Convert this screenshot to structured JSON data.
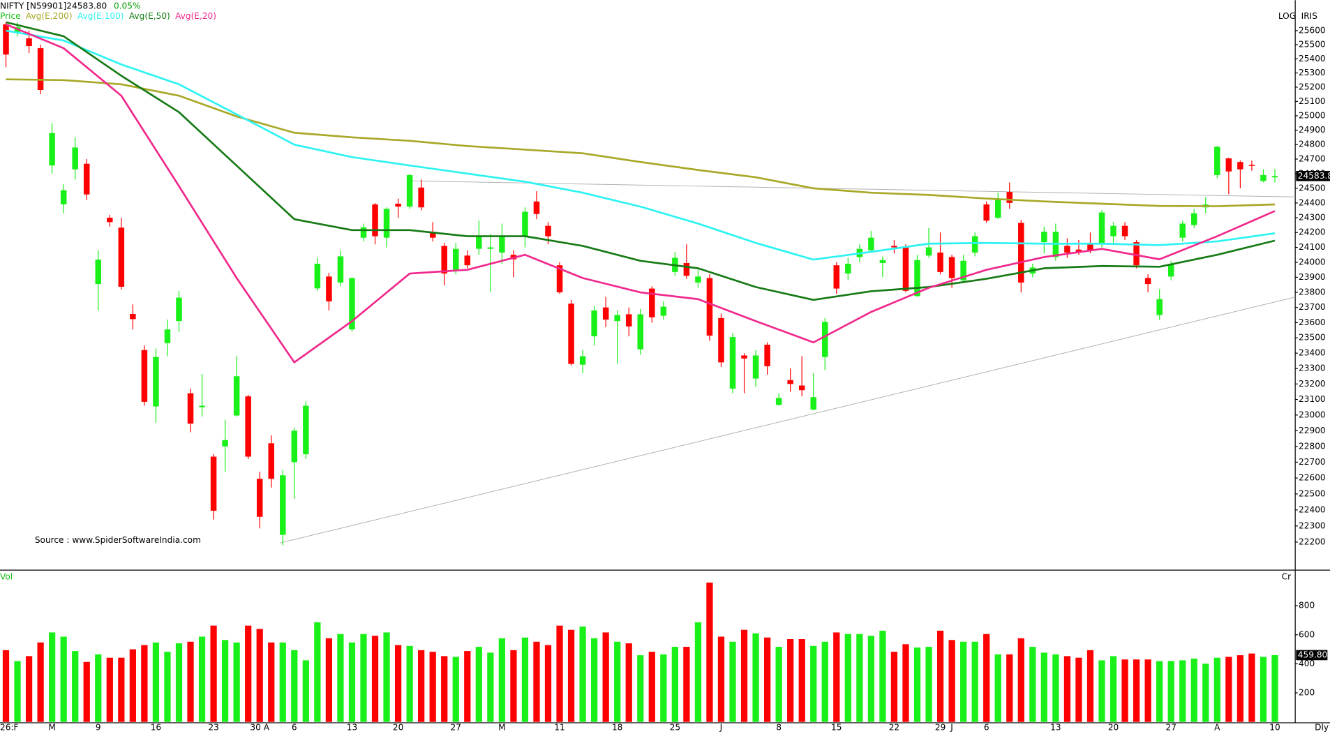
{
  "chart_data": {
    "type": "candlestick",
    "title": "NIFTY [N59901]24583.80",
    "subtitle": "0.05%",
    "scale_label": "LOG",
    "source_label": "IRIS",
    "annotation": "Source : www.SpiderSoftwareIndia.com",
    "log_scale": true,
    "ylim": [
      22090,
      25745
    ],
    "yticks": [
      22200,
      22300,
      22400,
      22500,
      22600,
      22700,
      22800,
      22900,
      23000,
      23100,
      23200,
      23300,
      23400,
      23500,
      23600,
      23700,
      23800,
      23900,
      24000,
      24100,
      24200,
      24300,
      24400,
      24500,
      24600,
      24700,
      24800,
      24900,
      25000,
      25100,
      25200,
      25300,
      25400,
      25500,
      25600
    ],
    "categories": [
      "26:F",
      null,
      null,
      null,
      "M",
      null,
      null,
      null,
      "9",
      null,
      null,
      null,
      null,
      "16",
      null,
      null,
      null,
      null,
      "23",
      null,
      null,
      null,
      "30 A",
      null,
      null,
      "6",
      null,
      null,
      null,
      null,
      "13",
      null,
      null,
      null,
      "20",
      null,
      null,
      null,
      null,
      "27",
      null,
      null,
      null,
      "M",
      null,
      null,
      null,
      null,
      "11",
      null,
      null,
      null,
      null,
      "18",
      null,
      null,
      null,
      null,
      "25",
      null,
      null,
      null,
      "J",
      null,
      null,
      null,
      null,
      "8",
      null,
      null,
      null,
      null,
      "15",
      null,
      null,
      null,
      null,
      "22",
      null,
      null,
      null,
      "29",
      "J",
      null,
      null,
      "6",
      null,
      null,
      null,
      null,
      null,
      "13",
      null,
      null,
      null,
      null,
      "20",
      null,
      null,
      null,
      null,
      "27",
      null,
      null,
      null,
      "A",
      null,
      null,
      null,
      null,
      "10"
    ],
    "period_label": "Dly",
    "candles": {
      "name": "Price",
      "up_color": "#19f019",
      "down_color": "#ff0000",
      "open": [
        25645,
        25590,
        25545,
        25475,
        24656,
        24391,
        24630,
        24668,
        23855,
        24300,
        24233,
        23657,
        23420,
        23055,
        23465,
        23610,
        23140,
        23050,
        22735,
        22800,
        22997,
        23120,
        22595,
        22820,
        22245,
        22700,
        22750,
        23826,
        23905,
        23865,
        23555,
        24165,
        24390,
        24165,
        24395,
        24375,
        24505,
        24205,
        24110,
        23950,
        24045,
        24090,
        24090,
        24065,
        24050,
        24175,
        24410,
        24245,
        23980,
        23725,
        23325,
        23510,
        23700,
        23610,
        23655,
        23425,
        23825,
        23645,
        23935,
        23995,
        23865,
        23895,
        23630,
        23170,
        23385,
        23235,
        23455,
        23065,
        23225,
        23190,
        23035,
        23375,
        23980,
        23925,
        24035,
        24080,
        23995,
        24110,
        24100,
        23775,
        24045,
        24065,
        24035,
        23880,
        24065,
        24390,
        24300,
        24475,
        24265,
        23925,
        24135,
        24035,
        24110,
        24085,
        24130,
        24120,
        24175,
        24245,
        24135,
        23895,
        23650,
        23905,
        24165,
        24250,
        24370,
        24590,
        24705,
        24680,
        24660,
        24550,
        24575
      ],
      "high": [
        25660,
        25660,
        25600,
        25500,
        24950,
        24530,
        24850,
        24700,
        24080,
        24320,
        24300,
        23720,
        23450,
        23430,
        23620,
        23810,
        23170,
        23265,
        22750,
        22970,
        23380,
        23130,
        22640,
        22870,
        22650,
        22920,
        23090,
        24030,
        23930,
        24080,
        23900,
        24260,
        24400,
        24370,
        24430,
        24600,
        24560,
        24270,
        24130,
        24130,
        24080,
        24280,
        24190,
        24260,
        24080,
        24370,
        24480,
        24270,
        24000,
        23750,
        23420,
        23710,
        23770,
        23680,
        23700,
        23690,
        23840,
        23740,
        24070,
        24120,
        23950,
        23920,
        23660,
        23530,
        23400,
        23420,
        23470,
        23140,
        23300,
        23380,
        23270,
        23630,
        24000,
        24030,
        24120,
        24210,
        24040,
        24150,
        24120,
        24050,
        24230,
        24200,
        24050,
        24050,
        24200,
        24410,
        24470,
        24540,
        24285,
        23990,
        24240,
        24260,
        24160,
        24150,
        24200,
        24350,
        24270,
        24270,
        24150,
        23920,
        23820,
        24010,
        24280,
        24360,
        24440,
        24790,
        24710,
        24690,
        24690,
        24630,
        24630
      ],
      "low": [
        25340,
        25560,
        25440,
        25150,
        24600,
        24330,
        24560,
        24420,
        23680,
        24240,
        23820,
        23555,
        23060,
        22950,
        23380,
        23540,
        22890,
        22990,
        22340,
        22640,
        22990,
        22720,
        22285,
        22540,
        22180,
        22470,
        22720,
        23810,
        23680,
        23840,
        23540,
        24140,
        24120,
        24100,
        24300,
        24360,
        24350,
        24140,
        23845,
        23920,
        23960,
        24050,
        23800,
        23990,
        23900,
        24100,
        24290,
        24120,
        23790,
        23320,
        23270,
        23450,
        23570,
        23330,
        23510,
        23390,
        23600,
        23620,
        23910,
        23890,
        23830,
        23480,
        23310,
        23140,
        23140,
        23180,
        23260,
        23060,
        23150,
        23120,
        23030,
        23290,
        23790,
        23880,
        24000,
        24070,
        23900,
        24060,
        23800,
        23770,
        24030,
        23920,
        23830,
        23860,
        24040,
        24265,
        24290,
        24360,
        23800,
        23900,
        24060,
        24010,
        24030,
        24050,
        24060,
        24100,
        24120,
        24150,
        23960,
        23800,
        23620,
        23880,
        24140,
        24230,
        24330,
        24570,
        24460,
        24500,
        24620,
        24540,
        24540
      ],
      "close": [
        25430,
        25625,
        25490,
        25180,
        24880,
        24487,
        24780,
        24458,
        24018,
        24270,
        23837,
        23623,
        23085,
        23375,
        23555,
        23765,
        22945,
        23060,
        22395,
        22840,
        23250,
        22735,
        22357,
        22595,
        22617,
        22900,
        23060,
        23990,
        23740,
        24040,
        23895,
        24235,
        24175,
        24360,
        24375,
        24590,
        24370,
        24165,
        23925,
        24090,
        23980,
        24175,
        24100,
        24175,
        24020,
        24340,
        24325,
        24175,
        23800,
        23330,
        23380,
        23680,
        23620,
        23650,
        23575,
        23655,
        23635,
        23705,
        24030,
        23910,
        23905,
        23515,
        23340,
        23505,
        23365,
        23385,
        23315,
        23110,
        23200,
        23160,
        23115,
        23605,
        23825,
        23990,
        24090,
        24165,
        24015,
        24100,
        23810,
        24015,
        24100,
        23935,
        23895,
        24010,
        24175,
        24280,
        24430,
        24400,
        23865,
        23965,
        24205,
        24205,
        24065,
        24070,
        24080,
        24335,
        24245,
        24175,
        23980,
        23855,
        23755,
        23985,
        24260,
        24330,
        24390,
        24785,
        24615,
        24630,
        24655,
        24590,
        24583.8
      ]
    },
    "series": [
      {
        "name": "Avg(E,200)",
        "color": "#a8a828",
        "x": [
          0,
          5,
          10,
          15,
          20,
          25,
          30,
          35,
          40,
          45,
          50,
          55,
          60,
          65,
          70,
          75,
          80,
          85,
          90,
          95,
          100,
          105,
          110
        ],
        "values": [
          25255,
          25250,
          25220,
          25140,
          24995,
          24882,
          24850,
          24826,
          24790,
          24765,
          24740,
          24680,
          24625,
          24575,
          24500,
          24470,
          24455,
          24430,
          24410,
          24395,
          24380,
          24378,
          24390
        ]
      },
      {
        "name": "Avg(E,100)",
        "color": "#2ef2f2",
        "x": [
          0,
          5,
          10,
          15,
          20,
          25,
          30,
          35,
          40,
          45,
          50,
          55,
          60,
          65,
          70,
          75,
          80,
          85,
          90,
          95,
          100,
          105,
          110
        ],
        "values": [
          25600,
          25530,
          25360,
          25220,
          25010,
          24800,
          24714,
          24656,
          24600,
          24545,
          24470,
          24375,
          24260,
          24130,
          24018,
          24070,
          24125,
          24130,
          24125,
          24125,
          24115,
          24140,
          24195
        ]
      },
      {
        "name": "Avg(E,50)",
        "color": "#157a15",
        "x": [
          0,
          5,
          10,
          15,
          20,
          25,
          30,
          35,
          40,
          45,
          50,
          55,
          60,
          65,
          70,
          75,
          80,
          85,
          90,
          95,
          100,
          105,
          110
        ],
        "values": [
          25660,
          25560,
          25280,
          25025,
          24655,
          24290,
          24216,
          24216,
          24175,
          24175,
          24110,
          24010,
          23960,
          23835,
          23750,
          23807,
          23835,
          23890,
          23960,
          23975,
          23970,
          24050,
          24145
        ]
      },
      {
        "name": "Avg(E,20)",
        "color": "#f0288c",
        "x": [
          0,
          5,
          10,
          15,
          20,
          25,
          30,
          35,
          40,
          45,
          50,
          55,
          60,
          65,
          70,
          75,
          80,
          85,
          90,
          95,
          100,
          105,
          110
        ],
        "values": [
          25645,
          25475,
          25140,
          24515,
          23895,
          23340,
          23610,
          23925,
          23950,
          24050,
          23895,
          23800,
          23755,
          23610,
          23470,
          23670,
          23830,
          23950,
          24035,
          24090,
          24020,
          24175,
          24345
        ]
      }
    ],
    "volume": {
      "name": "Vol",
      "unit_label": "Cr",
      "ylim": [
        0,
        1039
      ],
      "yticks": [
        200,
        400,
        600,
        800
      ],
      "last_value_label": "459.80",
      "values": [
        494,
        419,
        453,
        547,
        616,
        587,
        488,
        413,
        465,
        442,
        442,
        500,
        529,
        547,
        483,
        541,
        552,
        587,
        663,
        564,
        547,
        663,
        640,
        547,
        547,
        494,
        424,
        686,
        576,
        605,
        547,
        605,
        593,
        616,
        529,
        523,
        494,
        483,
        453,
        448,
        488,
        517,
        477,
        576,
        494,
        581,
        552,
        529,
        663,
        634,
        657,
        576,
        616,
        552,
        541,
        459,
        483,
        465,
        517,
        517,
        686,
        959,
        587,
        552,
        634,
        610,
        581,
        517,
        570,
        570,
        523,
        552,
        616,
        605,
        605,
        593,
        628,
        483,
        535,
        512,
        517,
        628,
        564,
        552,
        552,
        605,
        465,
        465,
        576,
        517,
        477,
        465,
        453,
        442,
        494,
        424,
        453,
        430,
        430,
        430,
        419,
        419,
        424,
        436,
        401,
        442,
        448,
        459,
        471,
        448,
        459.8
      ]
    }
  }
}
